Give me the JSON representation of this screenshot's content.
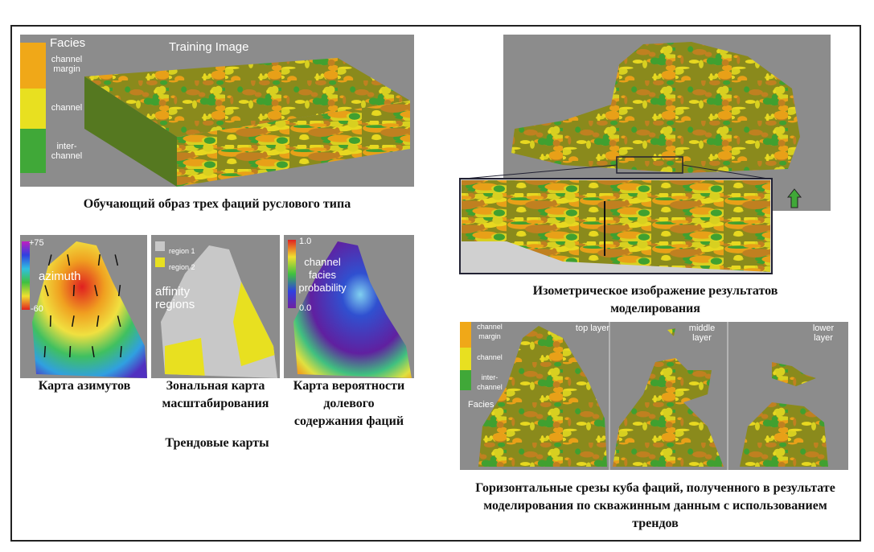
{
  "training_image": {
    "title": "Training Image",
    "legend_title": "Facies",
    "legend": [
      "channel margin",
      "channel",
      "inter-channel"
    ],
    "caption": "Обучающий образ трех фаций руслового типа"
  },
  "trend_maps": {
    "azimuth": {
      "max": "+75",
      "label": "azimuth",
      "min": "-60",
      "caption": "Карта азимутов"
    },
    "affinity": {
      "legend": [
        "region 1",
        "region 2"
      ],
      "label": "affinity regions",
      "caption": "Зональная карта масштабирования"
    },
    "probability": {
      "max": "1.0",
      "label": "channel facies probability",
      "min": "0.0",
      "caption": "Карта вероятности долевого содержания фаций"
    },
    "caption": "Трендовые карты"
  },
  "isometric": {
    "caption": "Изометрическое изображение результатов моделирования"
  },
  "slices": {
    "layers": [
      "top layer",
      "middle layer",
      "lower layer"
    ],
    "legend": [
      "channel margin",
      "channel",
      "inter-channel"
    ],
    "legend_title": "Facies",
    "caption": "Горизонтальные срезы куба фаций, полученного в результате моделирования по скважинным данным с использованием трендов"
  }
}
